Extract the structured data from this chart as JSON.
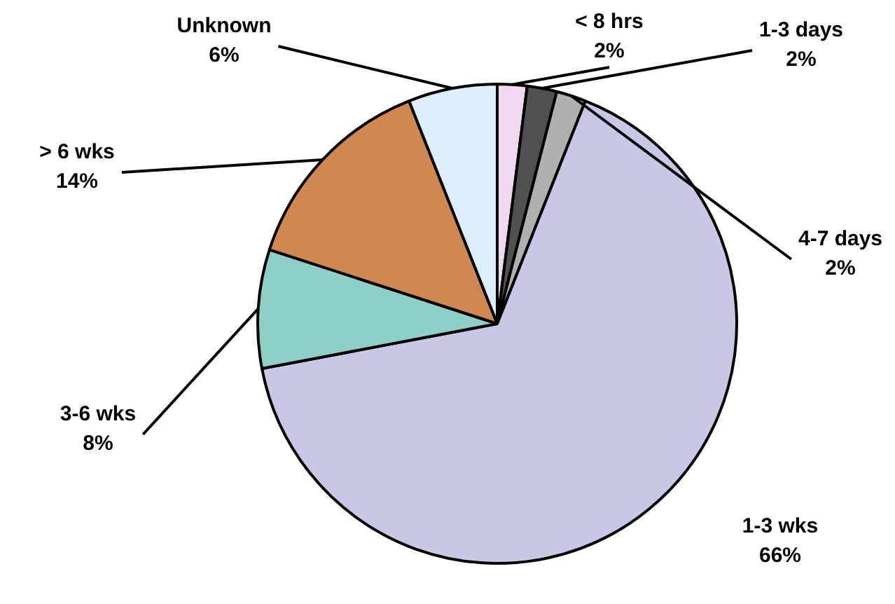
{
  "chart_data": {
    "type": "pie",
    "categories": [
      "< 8 hrs",
      "1-3 days",
      "4-7 days",
      "1-3 wks",
      "3-6 wks",
      "> 6 wks",
      "Unknown"
    ],
    "values": [
      2,
      2,
      2,
      66,
      8,
      14,
      6
    ],
    "value_labels": [
      "2%",
      "2%",
      "2%",
      "66%",
      "8%",
      "14%",
      "6%"
    ],
    "colors": [
      "#f0d8f0",
      "#505050",
      "#b0b0b0",
      "#c8c8e6",
      "#8ecfc8",
      "#d08850",
      "#ddeeff"
    ],
    "legend": false
  }
}
